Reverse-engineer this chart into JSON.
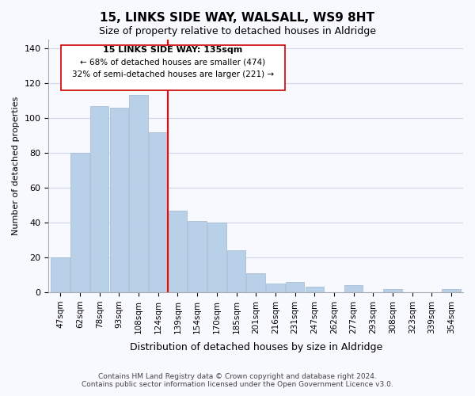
{
  "title": "15, LINKS SIDE WAY, WALSALL, WS9 8HT",
  "subtitle": "Size of property relative to detached houses in Aldridge",
  "xlabel": "Distribution of detached houses by size in Aldridge",
  "ylabel": "Number of detached properties",
  "categories": [
    "47sqm",
    "62sqm",
    "78sqm",
    "93sqm",
    "108sqm",
    "124sqm",
    "139sqm",
    "154sqm",
    "170sqm",
    "185sqm",
    "201sqm",
    "216sqm",
    "231sqm",
    "247sqm",
    "262sqm",
    "277sqm",
    "293sqm",
    "308sqm",
    "323sqm",
    "339sqm",
    "354sqm"
  ],
  "values": [
    20,
    80,
    107,
    106,
    113,
    92,
    47,
    41,
    40,
    24,
    11,
    5,
    6,
    3,
    0,
    4,
    0,
    2,
    0,
    0,
    2
  ],
  "bar_color": "#b8d0e8",
  "bar_edge_color": "#a0b8d0",
  "vline_x_index": 5.5,
  "vline_color": "red",
  "ylim": [
    0,
    145
  ],
  "yticks": [
    0,
    20,
    40,
    60,
    80,
    100,
    120,
    140
  ],
  "annotation_title": "15 LINKS SIDE WAY: 135sqm",
  "annotation_line1": "← 68% of detached houses are smaller (474)",
  "annotation_line2": "32% of semi-detached houses are larger (221) →",
  "footer_line1": "Contains HM Land Registry data © Crown copyright and database right 2024.",
  "footer_line2": "Contains public sector information licensed under the Open Government Licence v3.0.",
  "background_color": "#f8f8ff",
  "grid_color": "#d0d8e8"
}
